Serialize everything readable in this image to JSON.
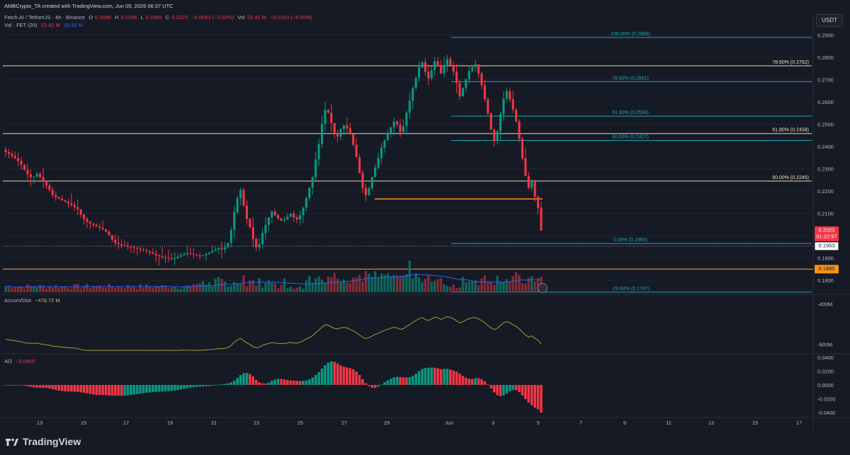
{
  "header": {
    "credit": "AMBCrypto_TA created with TradingView.com, Jun 05, 2026 06:37 UTC",
    "symbol_line": "Fetch.AI / TetherUS · 4h · Binance",
    "ohlc": {
      "o_label": "O",
      "o": "0.2086",
      "h_label": "H",
      "h": "0.2186",
      "l_label": "L",
      "l": "0.1965",
      "c_label": "C",
      "c": "0.2023",
      "change": "−0.0063 (−3.02%)"
    },
    "vol_inline": {
      "label": "Vol",
      "value": "22.42 M",
      "change": "−0.0143 (−6.60%)"
    },
    "vol_indicator": {
      "label": "Vol · FET (20)",
      "value1": "22.42 M",
      "value2": "26.92 M"
    },
    "currency": "USDT"
  },
  "indicators": {
    "ad": {
      "label": "Accum/Dist",
      "value": "−478.72 M",
      "axis": [
        "-400M",
        "-500M"
      ]
    },
    "ao": {
      "label": "AO",
      "value": "−0.0400",
      "axis": [
        "0.0400",
        "0.0200",
        "0.0000",
        "-0.0200",
        "-0.0400"
      ]
    }
  },
  "price_axis": [
    "0.2900",
    "0.2800",
    "0.2700",
    "0.2600",
    "0.2500",
    "0.2400",
    "0.2300",
    "0.2200",
    "0.2100",
    "0.2000",
    "0.1900",
    "0.1800"
  ],
  "price_badges": {
    "last": "0.2023",
    "countdown": "01:22:57",
    "dotted": "0.1953",
    "support": "0.1850"
  },
  "fib_left": [
    {
      "label": "78.60% (0.2762)",
      "price": 0.2762
    },
    {
      "label": "61.80% (0.2458)",
      "price": 0.2458
    },
    {
      "label": "50.00% (0.2245)",
      "price": 0.2245
    }
  ],
  "fib_right": [
    {
      "label": "100.00% (0.2889)",
      "price": 0.2889
    },
    {
      "label": "78.60% (0.2691)",
      "price": 0.2691
    },
    {
      "label": "61.80% (0.2536)",
      "price": 0.2536
    },
    {
      "label": "50.00% (0.2427)",
      "price": 0.2427
    },
    {
      "label": "0.00% (0.1965)",
      "price": 0.1965
    },
    {
      "label": "-23.60% (0.1747)",
      "price": 0.1747
    }
  ],
  "x_axis": [
    "13",
    "15",
    "17",
    "19",
    "21",
    "23",
    "25",
    "27",
    "29",
    "Jun",
    "3",
    "5",
    "7",
    "9",
    "11",
    "13",
    "15",
    "17"
  ],
  "colors": {
    "up": "#089981",
    "down": "#f23645",
    "fib_left": "#e8dba3",
    "fib_right": "#22a6b3",
    "orange": "#f7931a",
    "ad": "#a89a3c",
    "vol_ma": "#2962ff"
  },
  "brand": "TradingView",
  "chart_data": {
    "type": "candlestick",
    "title": "Fetch.AI / TetherUS · 4h · Binance",
    "ylim": [
      0.174,
      0.293
    ],
    "y_unit": "USDT",
    "x_range": [
      "May 12",
      "Jun 17"
    ],
    "closes": [
      0.2375,
      0.2368,
      0.2358,
      0.2348,
      0.2335,
      0.2318,
      0.2295,
      0.2275,
      0.2262,
      0.2265,
      0.2278,
      0.2262,
      0.2245,
      0.2225,
      0.2205,
      0.2182,
      0.2172,
      0.2165,
      0.2158,
      0.2152,
      0.2145,
      0.2138,
      0.2128,
      0.2118,
      0.2095,
      0.2075,
      0.2062,
      0.2055,
      0.2048,
      0.2041,
      0.2035,
      0.2028,
      0.2018,
      0.2002,
      0.1982,
      0.1968,
      0.1962,
      0.1958,
      0.1955,
      0.1952,
      0.1948,
      0.1945,
      0.1942,
      0.1938,
      0.1935,
      0.1932,
      0.1925,
      0.1918,
      0.1912,
      0.1908,
      0.1905,
      0.1902,
      0.1898,
      0.1895,
      0.1899,
      0.1906,
      0.1912,
      0.1918,
      0.1922,
      0.1918,
      0.1915,
      0.1912,
      0.1908,
      0.1912,
      0.1918,
      0.1925,
      0.1932,
      0.1938,
      0.1945,
      0.1938,
      0.1948,
      0.1968,
      0.2025,
      0.2105,
      0.2168,
      0.2205,
      0.2135,
      0.2075,
      0.2038,
      0.1985,
      0.1948,
      0.1962,
      0.2012,
      0.2048,
      0.2082,
      0.2108,
      0.2092,
      0.2078,
      0.2068,
      0.2072,
      0.2085,
      0.2098,
      0.2082,
      0.2072,
      0.2092,
      0.2125,
      0.2168,
      0.2215,
      0.2262,
      0.2342,
      0.2412,
      0.2502,
      0.2565,
      0.2552,
      0.2505,
      0.2458,
      0.2445,
      0.2478,
      0.2495,
      0.2482,
      0.2455,
      0.2408,
      0.2352,
      0.2282,
      0.2215,
      0.2182,
      0.2212,
      0.2262,
      0.2305,
      0.2348,
      0.2395,
      0.2428,
      0.2458,
      0.2485,
      0.2512,
      0.2498,
      0.2465,
      0.2492,
      0.2552,
      0.2605,
      0.2662,
      0.2708,
      0.2755,
      0.2778,
      0.2735,
      0.2705,
      0.2742,
      0.2782,
      0.2765,
      0.2728,
      0.2762,
      0.2792,
      0.2765,
      0.2735,
      0.2685,
      0.2625,
      0.2662,
      0.2702,
      0.2738,
      0.2755,
      0.2768,
      0.2728,
      0.2675,
      0.2612,
      0.2548,
      0.2475,
      0.2425,
      0.2468,
      0.2545,
      0.2615,
      0.2648,
      0.2612,
      0.2565,
      0.2512,
      0.2435,
      0.2348,
      0.2268,
      0.2215,
      0.2245,
      0.2175,
      0.2125,
      0.2023
    ],
    "volume_max_m": 60,
    "ad_range_m": [
      -520,
      -380
    ],
    "ao_range": [
      -0.042,
      0.042
    ]
  }
}
